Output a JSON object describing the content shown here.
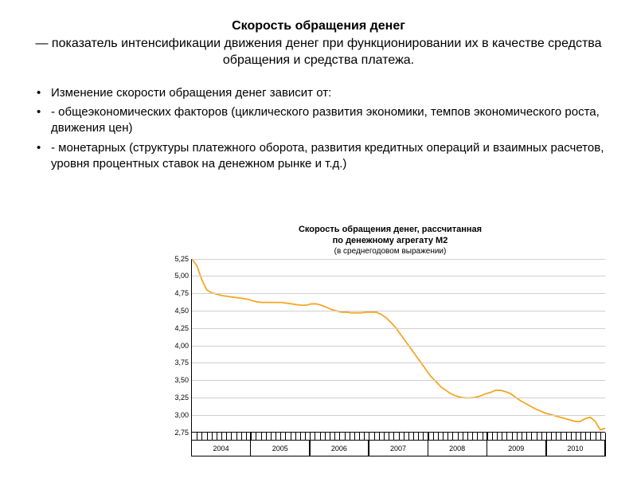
{
  "title": {
    "bold": "Скорость обращения денег",
    "rest": "— показатель интенсификации движения денег при функционировании их в качестве средства обращения и средства платежа."
  },
  "bullets": [
    "Изменение скорости обращения денег зависит от:",
    "- общеэкономических факторов (циклического развития экономики, темпов экономического роста, движения цен)",
    "- монетарных (структуры платежного оборота, развития кредитных операций и взаимных расчетов, уровня процентных ставок на денежном рынке и т.д.)"
  ],
  "chart": {
    "type": "line",
    "title_line1": "Скорость обращения денег, рассчитанная",
    "title_line2": "по денежному агрегату М2",
    "subtitle": "(в среднегодовом выражении)",
    "title_fontsize": 11,
    "subtitle_fontsize": 10,
    "line_color": "#f5a623",
    "line_width": 1.8,
    "background_color": "#ffffff",
    "grid_color": "#cfcfcf",
    "axis_color": "#000000",
    "ylim": [
      2.75,
      5.25
    ],
    "yticks": [
      2.75,
      3.0,
      3.25,
      3.5,
      3.75,
      4.0,
      4.25,
      4.5,
      4.75,
      5.0,
      5.25
    ],
    "ytick_labels": [
      "2,75",
      "3,00",
      "3,25",
      "3,50",
      "3,75",
      "4,00",
      "4,25",
      "4,50",
      "4,75",
      "5,00",
      "5,25"
    ],
    "x_years": [
      "2004",
      "2005",
      "2006",
      "2007",
      "2008",
      "2009",
      "2010"
    ],
    "minor_per_year": 12,
    "series": [
      5.25,
      5.15,
      4.95,
      4.8,
      4.76,
      4.74,
      4.72,
      4.71,
      4.7,
      4.69,
      4.68,
      4.67,
      4.65,
      4.63,
      4.62,
      4.62,
      4.62,
      4.62,
      4.62,
      4.61,
      4.6,
      4.59,
      4.58,
      4.58,
      4.6,
      4.6,
      4.58,
      4.55,
      4.52,
      4.5,
      4.48,
      4.48,
      4.47,
      4.47,
      4.47,
      4.48,
      4.48,
      4.48,
      4.45,
      4.4,
      4.33,
      4.25,
      4.15,
      4.05,
      3.95,
      3.85,
      3.75,
      3.65,
      3.55,
      3.48,
      3.4,
      3.35,
      3.3,
      3.27,
      3.25,
      3.24,
      3.24,
      3.25,
      3.27,
      3.3,
      3.32,
      3.35,
      3.35,
      3.33,
      3.3,
      3.25,
      3.2,
      3.16,
      3.12,
      3.08,
      3.05,
      3.02,
      3.0,
      2.98,
      2.96,
      2.94,
      2.92,
      2.9,
      2.9,
      2.94,
      2.96,
      2.9,
      2.78,
      2.8
    ]
  }
}
